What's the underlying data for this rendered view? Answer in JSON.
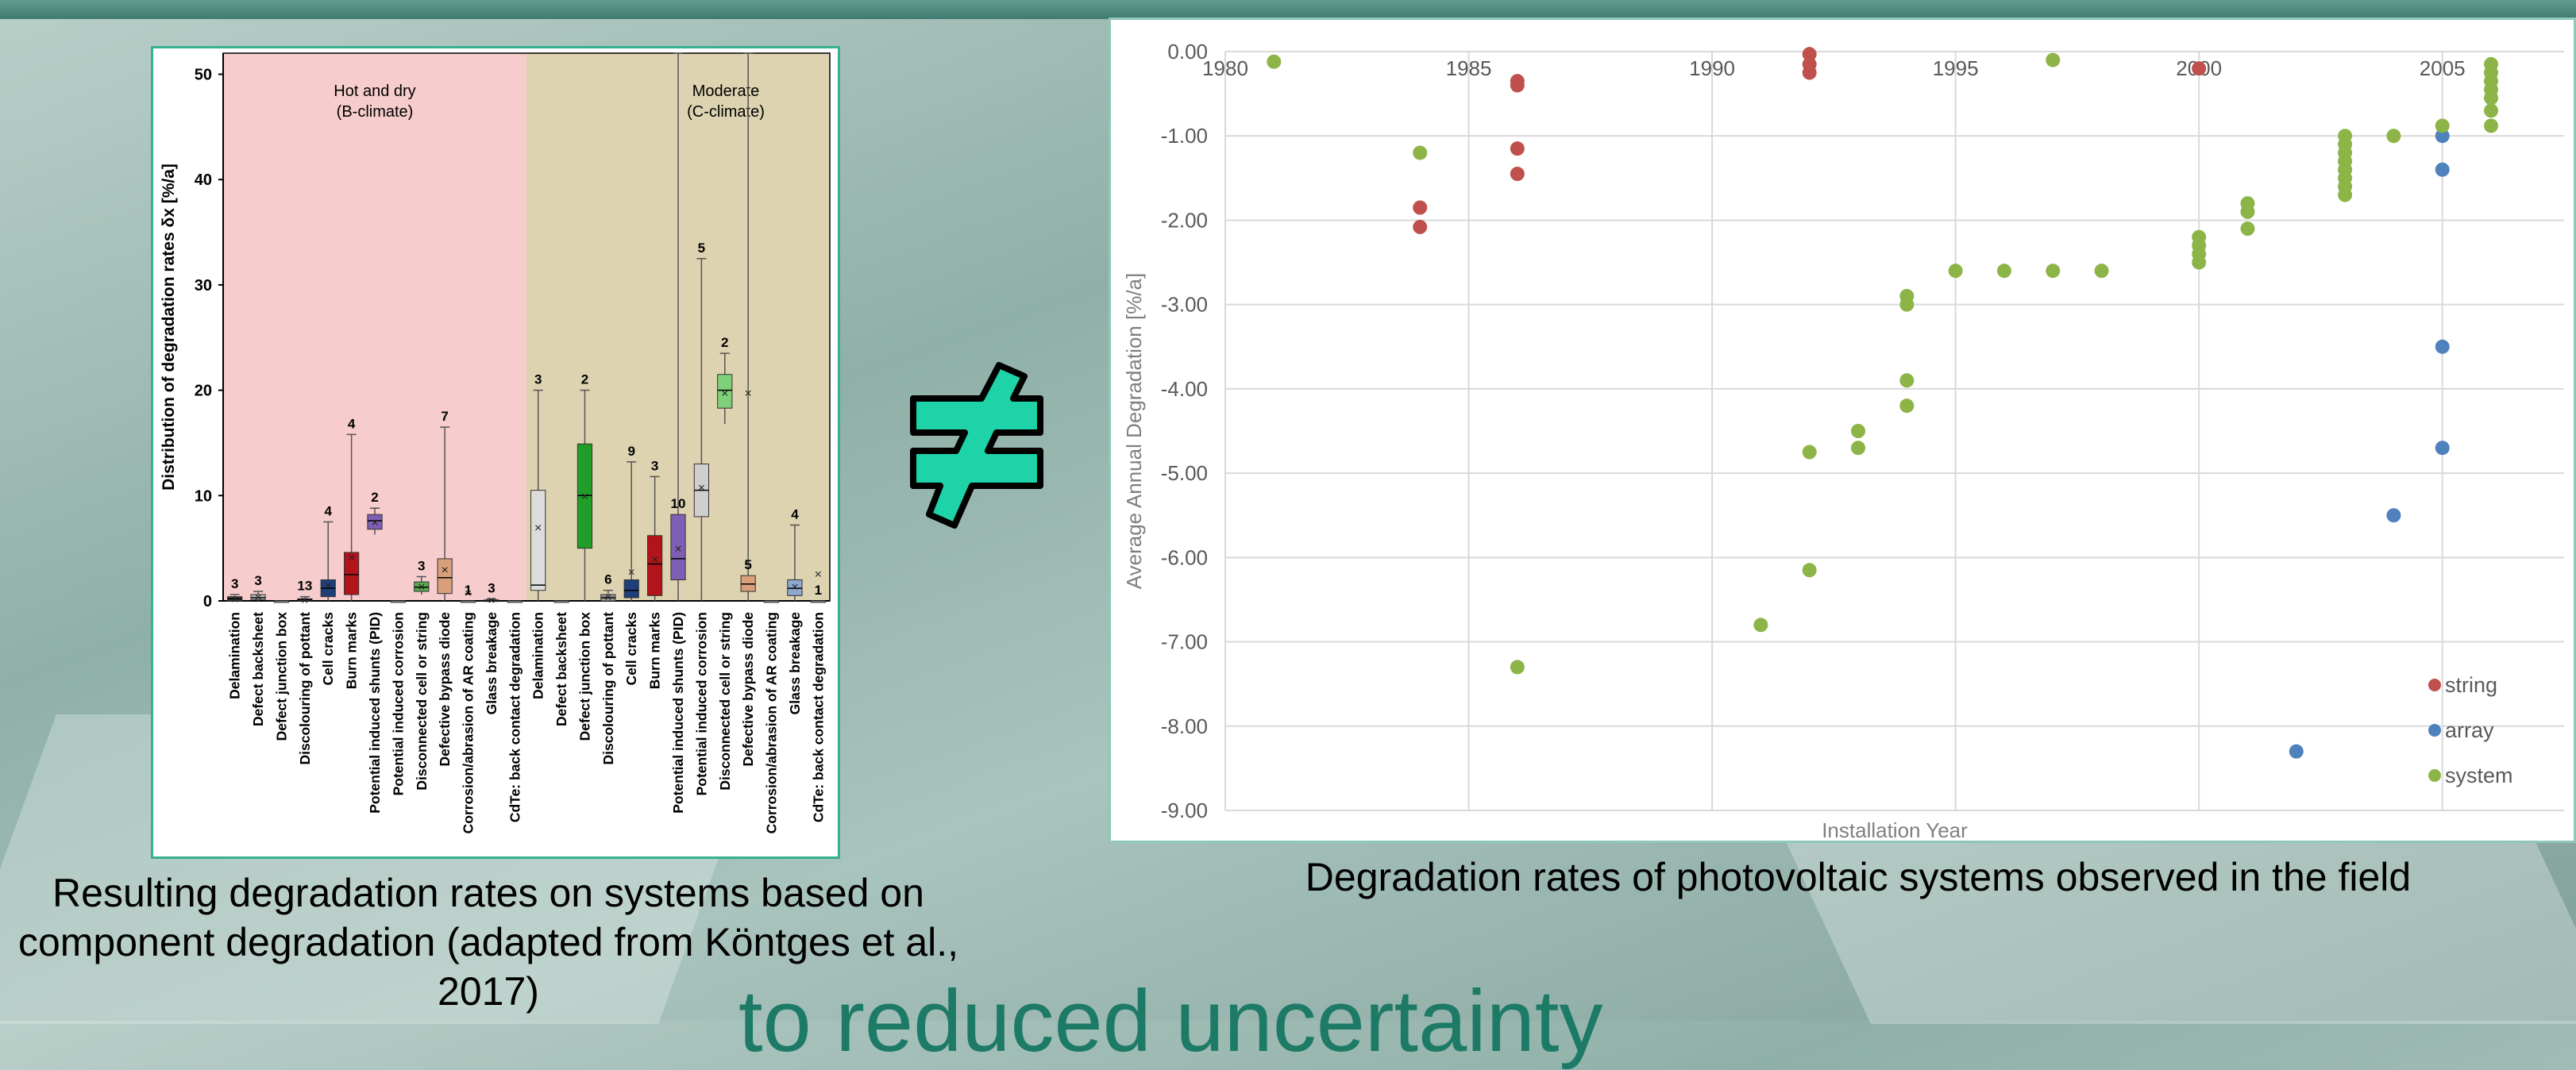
{
  "slide": {
    "left_caption": "Resulting degradation rates on systems based on component degradation (adapted from Köntges et al., 2017)",
    "right_caption": "Degradation rates of photovoltaic systems observed in the field",
    "bottom_text": "to reduced uncertainty",
    "not_equal_symbol": "≠",
    "not_equal_color": "#1dd3a7"
  },
  "chart_data": [
    {
      "type": "box",
      "ylabel": "Distribution of degradation rates δx [%/a]",
      "ylim": [
        0,
        52
      ],
      "yticks": [
        0,
        10,
        20,
        30,
        40,
        50
      ],
      "regions": [
        {
          "label": "Hot and dry",
          "sublabel": "(B-climate)",
          "color": "#f6cccc",
          "from": 0,
          "to": 13
        },
        {
          "label": "Moderate",
          "sublabel": "(C-climate)",
          "color": "#ddd3b0",
          "from": 13,
          "to": 26
        }
      ],
      "categories": [
        "Delamination",
        "Defect backsheet",
        "Defect junction box",
        "Discolouring of pottant",
        "Cell cracks",
        "Burn marks",
        "Potential induced shunts (PID)",
        "Potential induced corrosion",
        "Disconnected cell or string",
        "Defective bypass diode",
        "Corrosion/abrasion of AR coating",
        "Glass breakage",
        "CdTe: back contact degradation",
        "Delamination",
        "Defect backsheet",
        "Defect junction box",
        "Discolouring of pottant",
        "Cell cracks",
        "Burn marks",
        "Potential induced shunts (PID)",
        "Potential induced corrosion",
        "Disconnected cell or string",
        "Defective bypass diode",
        "Corrosion/abrasion of AR coating",
        "Glass breakage",
        "CdTe: back contact degradation"
      ],
      "boxes": [
        {
          "n": "3",
          "min": 0,
          "q1": 0,
          "med": 0.2,
          "q3": 0.4,
          "max": 0.6,
          "mean": 0.2,
          "color": "#3b3b3b"
        },
        {
          "n": "3",
          "min": 0,
          "q1": 0.1,
          "med": 0.3,
          "q3": 0.6,
          "max": 0.9,
          "mean": 0.4,
          "color": "#bdbdbd"
        },
        {
          "n": "",
          "min": 0,
          "q1": 0,
          "med": 0,
          "q3": 0,
          "max": 0,
          "mean": 0,
          "color": "#999999"
        },
        {
          "n": "13",
          "min": 0,
          "q1": 0,
          "med": 0.1,
          "q3": 0.2,
          "max": 0.4,
          "mean": 0.1,
          "color": "#999999"
        },
        {
          "n": "4",
          "min": 0,
          "q1": 0.4,
          "med": 1.2,
          "q3": 2.0,
          "max": 7.5,
          "mean": 1.5,
          "color": "#1f3f7a"
        },
        {
          "n": "4",
          "min": 0,
          "q1": 0.6,
          "med": 2.5,
          "q3": 4.6,
          "max": 15.8,
          "mean": 4.2,
          "color": "#b3141c"
        },
        {
          "n": "2",
          "min": 6.3,
          "q1": 6.8,
          "med": 7.6,
          "q3": 8.2,
          "max": 8.8,
          "mean": 7.5,
          "color": "#7d5fb3"
        },
        {
          "n": "",
          "min": 0,
          "q1": 0,
          "med": 0,
          "q3": 0,
          "max": 0,
          "mean": 0,
          "color": "#999999"
        },
        {
          "n": "3",
          "min": 0.6,
          "q1": 0.9,
          "med": 1.3,
          "q3": 1.8,
          "max": 2.3,
          "mean": 1.4,
          "color": "#5aaa55"
        },
        {
          "n": "7",
          "min": 0,
          "q1": 0.7,
          "med": 2.2,
          "q3": 4.0,
          "max": 16.5,
          "mean": 3.0,
          "color": "#d8a07a"
        },
        {
          "n": "1",
          "min": 0,
          "q1": 0,
          "med": 0,
          "q3": 0,
          "max": 0,
          "mean": 0.8,
          "color": "#999999"
        },
        {
          "n": "3",
          "min": 0,
          "q1": 0,
          "med": 0,
          "q3": 0.1,
          "max": 0.2,
          "mean": 0.1,
          "color": "#999999"
        },
        {
          "n": "",
          "min": 0,
          "q1": 0,
          "med": 0,
          "q3": 0,
          "max": 0,
          "mean": 0,
          "color": "#999999"
        },
        {
          "n": "3",
          "min": 0,
          "q1": 1.0,
          "med": 1.5,
          "q3": 10.5,
          "max": 20.0,
          "mean": 7.0,
          "color": "#dcdcdc"
        },
        {
          "n": "",
          "min": 0,
          "q1": 0,
          "med": 0,
          "q3": 0,
          "max": 0,
          "mean": 0,
          "color": "#999999"
        },
        {
          "n": "2",
          "min": 0,
          "q1": 5.0,
          "med": 10.0,
          "q3": 14.9,
          "max": 20.0,
          "mean": 10.0,
          "color": "#1f9e2a"
        },
        {
          "n": "6",
          "min": 0,
          "q1": 0,
          "med": 0.3,
          "q3": 0.6,
          "max": 1.0,
          "mean": 0.4,
          "color": "#999999"
        },
        {
          "n": "9",
          "min": 0,
          "q1": 0.3,
          "med": 1.0,
          "q3": 2.0,
          "max": 13.2,
          "mean": 2.8,
          "color": "#1f3f7a"
        },
        {
          "n": "3",
          "min": 0,
          "q1": 0.5,
          "med": 3.5,
          "q3": 6.2,
          "max": 11.8,
          "mean": 4.0,
          "color": "#b3141c"
        },
        {
          "n": "10",
          "min": 0,
          "q1": 2.0,
          "med": 4.0,
          "q3": 8.2,
          "max": 52.0,
          "mean": 5.0,
          "color": "#7d5fb3"
        },
        {
          "n": "5",
          "min": 0,
          "q1": 8.0,
          "med": 10.5,
          "q3": 13.0,
          "max": 32.5,
          "mean": 10.8,
          "color": "#cfcfcf"
        },
        {
          "n": "2",
          "min": 16.8,
          "q1": 18.3,
          "med": 20.0,
          "q3": 21.5,
          "max": 23.5,
          "mean": 19.8,
          "color": "#7fd07a"
        },
        {
          "n": "5",
          "min": 0,
          "q1": 0.9,
          "med": 1.6,
          "q3": 2.4,
          "max": 52.0,
          "mean": 19.8,
          "color": "#d8a07a"
        },
        {
          "n": "",
          "min": 0,
          "q1": 0,
          "med": 0,
          "q3": 0,
          "max": 0,
          "mean": 0,
          "color": "#999999"
        },
        {
          "n": "4",
          "min": 0,
          "q1": 0.5,
          "med": 1.2,
          "q3": 2.0,
          "max": 7.2,
          "mean": 1.4,
          "color": "#8fa8d0"
        },
        {
          "n": "1",
          "min": 0,
          "q1": 0,
          "med": 0,
          "q3": 0,
          "max": 0,
          "mean": 2.6,
          "color": "#999999"
        }
      ]
    },
    {
      "type": "scatter",
      "xlabel": "Installation Year",
      "ylabel": "Average Annual Degradation [%/a]",
      "xlim": [
        1980,
        2007.5
      ],
      "ylim": [
        -9,
        0
      ],
      "xticks": [
        1980,
        1985,
        1990,
        1995,
        2000,
        2005
      ],
      "yticks": [
        "0.00",
        "-1.00",
        "-2.00",
        "-3.00",
        "-4.00",
        "-5.00",
        "-6.00",
        "-7.00",
        "-8.00",
        "-9.00"
      ],
      "legend": "bottom-right",
      "series": [
        {
          "name": "string",
          "color": "#c0504d",
          "points": [
            [
              1984,
              -1.85
            ],
            [
              1984,
              -2.08
            ],
            [
              1986,
              -0.35
            ],
            [
              1986,
              -0.4
            ],
            [
              1986,
              -1.15
            ],
            [
              1986,
              -1.45
            ],
            [
              1992,
              -0.03
            ],
            [
              1992,
              -0.15
            ],
            [
              1992,
              -0.25
            ],
            [
              2000,
              -0.2
            ]
          ]
        },
        {
          "name": "array",
          "color": "#4f81bd",
          "points": [
            [
              2002,
              -8.3
            ],
            [
              2004,
              -5.5
            ],
            [
              2005,
              -1.0
            ],
            [
              2005,
              -1.4
            ],
            [
              2005,
              -3.5
            ],
            [
              2005,
              -4.7
            ]
          ]
        },
        {
          "name": "system",
          "color": "#8db447",
          "points": [
            [
              1981,
              -0.12
            ],
            [
              1984,
              -1.2
            ],
            [
              1986,
              -7.3
            ],
            [
              1991,
              -6.8
            ],
            [
              1992,
              -4.75
            ],
            [
              1992,
              -6.15
            ],
            [
              1993,
              -4.5
            ],
            [
              1993,
              -4.7
            ],
            [
              1994,
              -2.9
            ],
            [
              1994,
              -3.0
            ],
            [
              1994,
              -3.9
            ],
            [
              1994,
              -4.2
            ],
            [
              1995,
              -2.6
            ],
            [
              1996,
              -2.6
            ],
            [
              1997,
              -0.1
            ],
            [
              1997,
              -2.6
            ],
            [
              1998,
              -2.6
            ],
            [
              2000,
              -2.2
            ],
            [
              2000,
              -2.3
            ],
            [
              2000,
              -2.4
            ],
            [
              2000,
              -2.5
            ],
            [
              2001,
              -1.8
            ],
            [
              2001,
              -1.9
            ],
            [
              2001,
              -2.1
            ],
            [
              2003,
              -1.0
            ],
            [
              2003,
              -1.1
            ],
            [
              2003,
              -1.2
            ],
            [
              2003,
              -1.3
            ],
            [
              2003,
              -1.4
            ],
            [
              2003,
              -1.5
            ],
            [
              2003,
              -1.6
            ],
            [
              2003,
              -1.7
            ],
            [
              2004,
              -1.0
            ],
            [
              2005,
              -0.88
            ],
            [
              2006,
              -0.15
            ],
            [
              2006,
              -0.25
            ],
            [
              2006,
              -0.35
            ],
            [
              2006,
              -0.45
            ],
            [
              2006,
              -0.55
            ],
            [
              2006,
              -0.7
            ],
            [
              2006,
              -0.88
            ]
          ]
        }
      ]
    }
  ]
}
